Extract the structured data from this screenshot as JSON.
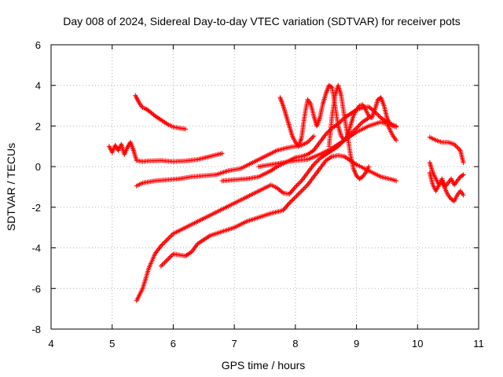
{
  "chart_data": {
    "type": "scatter",
    "title": "Day 008 of 2024, Sidereal Day-to-day VTEC variation (SDTVAR) for receiver pots",
    "xlabel": "GPS time / hours",
    "ylabel": "SDTVAR / TECUs",
    "xlim": [
      4,
      11
    ],
    "ylim": [
      -8,
      6
    ],
    "xticks": [
      4,
      5,
      6,
      7,
      8,
      9,
      10,
      11
    ],
    "yticks": [
      -8,
      -6,
      -4,
      -2,
      0,
      2,
      4,
      6
    ],
    "grid": true,
    "marker": "plus",
    "color": "#ff0000",
    "series": [
      {
        "x": [
          5.38,
          5.45,
          5.5,
          5.55,
          5.62,
          5.7,
          5.8,
          5.9,
          6.0,
          6.1,
          6.2
        ],
        "y": [
          3.5,
          3.1,
          2.9,
          2.85,
          2.7,
          2.5,
          2.3,
          2.1,
          1.95,
          1.9,
          1.85
        ]
      },
      {
        "x": [
          4.95,
          5.0,
          5.05,
          5.1,
          5.15,
          5.2,
          5.25,
          5.3,
          5.35,
          5.4,
          5.5,
          5.6,
          5.8,
          6.0,
          6.2,
          6.4,
          6.6,
          6.8
        ],
        "y": [
          1.0,
          0.7,
          1.05,
          0.8,
          1.1,
          0.6,
          0.95,
          1.2,
          0.8,
          0.3,
          0.25,
          0.28,
          0.3,
          0.25,
          0.28,
          0.35,
          0.5,
          0.65
        ]
      },
      {
        "x": [
          5.4,
          5.5,
          5.7,
          5.9,
          6.1,
          6.3,
          6.5,
          6.7,
          6.9,
          7.1,
          7.3,
          7.5,
          7.7,
          7.9,
          8.1,
          8.2,
          8.3
        ],
        "y": [
          -0.95,
          -0.8,
          -0.7,
          -0.65,
          -0.6,
          -0.5,
          -0.45,
          -0.4,
          -0.2,
          -0.1,
          0.2,
          0.5,
          0.8,
          0.95,
          1.05,
          1.2,
          1.5
        ]
      },
      {
        "x": [
          6.8,
          7.0,
          7.2,
          7.4,
          7.5,
          7.6,
          7.7,
          7.8,
          7.9,
          8.0,
          8.1,
          8.2,
          8.3,
          8.4,
          8.5,
          8.6,
          8.7,
          8.8,
          8.9,
          9.0,
          9.1,
          9.2,
          9.3,
          9.4,
          9.5,
          9.6,
          9.65
        ],
        "y": [
          -0.7,
          -0.65,
          -0.6,
          -0.5,
          -0.35,
          -0.2,
          0.0,
          0.15,
          0.3,
          0.45,
          0.5,
          0.6,
          0.8,
          1.2,
          1.6,
          1.9,
          2.1,
          2.4,
          2.6,
          2.8,
          2.9,
          2.95,
          2.7,
          2.4,
          2.2,
          2.05,
          2.0
        ]
      },
      {
        "x": [
          5.4,
          5.5,
          5.6,
          5.7,
          5.8,
          6.0,
          6.2,
          6.4,
          6.6,
          6.8,
          7.0,
          7.2,
          7.4,
          7.6,
          7.7,
          7.8,
          7.9,
          8.0,
          8.1,
          8.2,
          8.3,
          8.4,
          8.5,
          8.6,
          8.7,
          8.8,
          8.9,
          9.0,
          9.1,
          9.2
        ],
        "y": [
          -6.6,
          -6.0,
          -5.0,
          -4.3,
          -3.9,
          -3.3,
          -3.0,
          -2.7,
          -2.4,
          -2.1,
          -1.8,
          -1.5,
          -1.2,
          -0.9,
          -1.05,
          -1.3,
          -1.35,
          -1.0,
          -0.7,
          -0.3,
          0.1,
          0.4,
          0.6,
          0.8,
          1.0,
          1.3,
          1.6,
          1.9,
          2.2,
          2.4
        ]
      },
      {
        "x": [
          5.8,
          5.9,
          6.0,
          6.1,
          6.2,
          6.3,
          6.4,
          6.6,
          6.8,
          7.0,
          7.2,
          7.4,
          7.6,
          7.8,
          7.9,
          8.0,
          8.1,
          8.2,
          8.3,
          8.4,
          8.5,
          8.6,
          8.7,
          8.8,
          8.9,
          9.0,
          9.2,
          9.4,
          9.6,
          9.65
        ],
        "y": [
          -4.9,
          -4.6,
          -4.3,
          -4.35,
          -4.4,
          -4.2,
          -3.8,
          -3.4,
          -3.2,
          -3.0,
          -2.7,
          -2.5,
          -2.3,
          -2.15,
          -1.8,
          -1.5,
          -1.2,
          -0.9,
          -0.5,
          -0.1,
          0.3,
          0.5,
          0.55,
          0.5,
          0.3,
          0.1,
          -0.2,
          -0.5,
          -0.65,
          -0.7
        ]
      },
      {
        "x": [
          7.4,
          7.6,
          7.8,
          8.0,
          8.2,
          8.4,
          8.6,
          8.7,
          8.8,
          8.9,
          9.0,
          9.2,
          9.4,
          9.5,
          9.6,
          9.65
        ],
        "y": [
          0.0,
          0.1,
          0.2,
          0.3,
          0.35,
          0.6,
          0.9,
          1.1,
          1.3,
          1.5,
          1.7,
          2.0,
          2.2,
          2.1,
          1.5,
          1.3
        ]
      },
      {
        "x": [
          7.75,
          7.8,
          7.85,
          7.9,
          7.95,
          8.0,
          8.05,
          8.1,
          8.15,
          8.2,
          8.25,
          8.3,
          8.35,
          8.4,
          8.45,
          8.5,
          8.55,
          8.6,
          8.65,
          8.7,
          8.75,
          8.8,
          8.85,
          8.9,
          8.95,
          9.0,
          9.05,
          9.1,
          9.15,
          9.2,
          9.25,
          9.3,
          9.35,
          9.4,
          9.45,
          9.5,
          9.55,
          9.6,
          9.65
        ],
        "y": [
          3.4,
          3.0,
          2.5,
          2.0,
          1.5,
          1.2,
          1.0,
          1.4,
          2.5,
          3.3,
          3.1,
          2.5,
          2.0,
          2.4,
          3.1,
          3.6,
          4.0,
          3.9,
          3.0,
          2.0,
          1.5,
          1.3,
          1.5,
          2.0,
          2.5,
          2.8,
          3.0,
          3.05,
          2.8,
          2.5,
          2.4,
          2.8,
          3.3,
          3.4,
          3.0,
          2.4,
          2.1,
          2.0,
          1.95
        ]
      },
      {
        "x": [
          8.55,
          8.6,
          8.65,
          8.7,
          8.75,
          8.8,
          8.85,
          8.9,
          8.95,
          9.0,
          9.05,
          9.1,
          9.15,
          9.2
        ],
        "y": [
          1.0,
          2.5,
          3.5,
          4.0,
          3.5,
          2.5,
          1.6,
          0.6,
          -0.1,
          -0.45,
          -0.6,
          -0.5,
          -0.3,
          0.0
        ]
      },
      {
        "x": [
          10.2,
          10.3,
          10.4,
          10.5,
          10.6,
          10.7,
          10.75
        ],
        "y": [
          1.45,
          1.3,
          1.2,
          1.2,
          1.1,
          0.8,
          0.2
        ]
      },
      {
        "x": [
          10.2,
          10.25,
          10.3,
          10.35,
          10.4,
          10.45,
          10.5,
          10.55,
          10.6,
          10.65,
          10.7,
          10.75
        ],
        "y": [
          0.2,
          -0.3,
          -0.6,
          -0.9,
          -0.7,
          -1.0,
          -0.8,
          -0.6,
          -0.9,
          -0.7,
          -0.5,
          -0.4
        ]
      },
      {
        "x": [
          10.2,
          10.25,
          10.3,
          10.35,
          10.4,
          10.45,
          10.5,
          10.55,
          10.6,
          10.65,
          10.7,
          10.75
        ],
        "y": [
          -0.3,
          -0.9,
          -1.2,
          -0.9,
          -0.6,
          -1.1,
          -1.4,
          -1.6,
          -1.7,
          -1.4,
          -1.2,
          -1.4
        ]
      }
    ]
  }
}
